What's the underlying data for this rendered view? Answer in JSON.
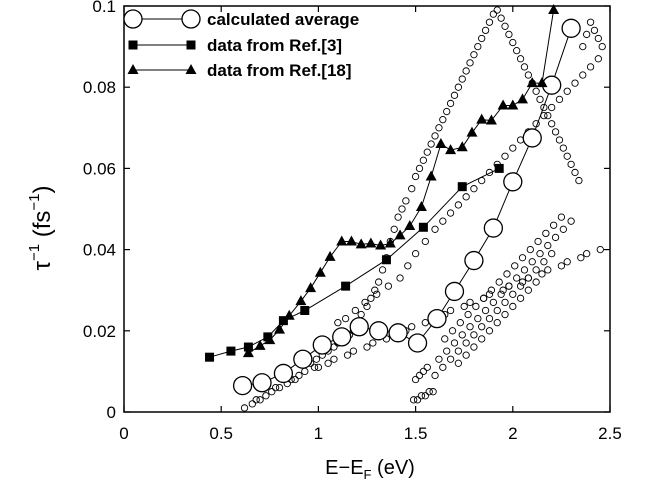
{
  "chart_data": {
    "type": "scatter",
    "xlabel": {
      "main": "E−E",
      "sub": "F",
      "unit": " (eV)"
    },
    "ylabel": {
      "sym": "τ",
      "sup": "−1",
      "paren_open": " (fs",
      "paren_sup": "−1",
      "paren_close": ")"
    },
    "xlim": [
      0,
      2.5
    ],
    "ylim": [
      0,
      0.1
    ],
    "x_ticks": [
      "0",
      "0.5",
      "1",
      "1.5",
      "2",
      "2.5"
    ],
    "y_ticks": [
      "0",
      "0.02",
      "0.04",
      "0.06",
      "0.08",
      "0.1"
    ],
    "legend_position": "top-left",
    "series": [
      {
        "name": "calculated average",
        "marker": "open-circle-large",
        "line": true,
        "x": [
          0.61,
          0.71,
          0.82,
          0.92,
          1.02,
          1.12,
          1.21,
          1.31,
          1.41,
          1.51,
          1.61,
          1.7,
          1.8,
          1.9,
          2.0,
          2.1,
          2.2,
          2.3
        ],
        "y": [
          0.0065,
          0.0072,
          0.0095,
          0.013,
          0.0165,
          0.0185,
          0.021,
          0.02,
          0.0195,
          0.017,
          0.023,
          0.0297,
          0.0373,
          0.0453,
          0.0567,
          0.0675,
          0.0805,
          0.0945
        ]
      },
      {
        "name": "data from Ref.[3]",
        "marker": "square",
        "line": true,
        "x": [
          0.44,
          0.55,
          0.64,
          0.74,
          0.82,
          0.93,
          1.14,
          1.35,
          1.54,
          1.74,
          1.93
        ],
        "y": [
          0.0135,
          0.015,
          0.016,
          0.0185,
          0.0225,
          0.025,
          0.031,
          0.0375,
          0.0455,
          0.0555,
          0.06
        ]
      },
      {
        "name": "data from Ref.[18]",
        "marker": "triangle",
        "line": true,
        "x": [
          0.64,
          0.7,
          0.75,
          0.8,
          0.85,
          0.91,
          0.96,
          1.01,
          1.06,
          1.12,
          1.17,
          1.22,
          1.27,
          1.32,
          1.37,
          1.42,
          1.47,
          1.53,
          1.58,
          1.63,
          1.68,
          1.74,
          1.79,
          1.84,
          1.89,
          1.95,
          2.0,
          2.05,
          2.1,
          2.15,
          2.21
        ],
        "y": [
          0.0145,
          0.0163,
          0.0177,
          0.0203,
          0.0237,
          0.0273,
          0.0305,
          0.0343,
          0.0382,
          0.042,
          0.042,
          0.0413,
          0.0415,
          0.041,
          0.0415,
          0.0435,
          0.0458,
          0.0505,
          0.058,
          0.066,
          0.0645,
          0.0652,
          0.0688,
          0.072,
          0.0718,
          0.0755,
          0.0755,
          0.077,
          0.081,
          0.081,
          0.099
        ]
      },
      {
        "name": "",
        "marker": "open-circle-small",
        "line": false,
        "x": [
          0.62,
          0.66,
          0.7,
          0.73,
          0.76,
          0.8,
          0.84,
          0.86,
          0.9,
          0.93,
          0.96,
          0.99,
          1.02,
          1.05,
          1.08,
          1.1,
          1.13,
          1.16,
          1.18,
          1.2,
          1.22,
          1.25,
          1.27,
          1.29,
          1.31,
          1.33,
          1.35,
          1.37,
          1.39,
          1.41,
          1.43,
          1.45,
          1.48,
          1.5,
          1.52,
          1.54,
          1.56,
          1.58,
          1.6,
          1.62,
          1.64,
          1.66,
          1.68,
          1.7,
          1.72,
          1.74,
          1.76,
          1.78,
          1.8,
          1.82,
          1.84,
          1.86,
          1.88,
          1.9,
          1.92,
          1.94,
          1.96,
          1.98,
          2.0,
          2.02,
          2.04,
          2.06,
          2.08,
          2.1,
          2.12,
          2.14,
          2.16,
          2.18,
          2.2,
          2.22,
          2.24,
          2.26,
          2.28,
          2.3,
          2.32,
          2.34,
          2.36,
          2.38,
          2.4,
          2.42,
          2.44,
          2.46,
          0.68,
          0.78,
          0.88,
          0.98,
          1.08,
          1.18,
          1.28,
          1.38,
          1.48,
          1.58,
          1.68,
          1.78,
          1.88,
          1.98,
          2.08,
          2.18,
          2.28,
          2.38,
          1.49,
          1.51,
          1.53,
          1.55,
          1.57,
          1.59,
          1.5,
          1.52,
          1.54,
          1.56,
          1.62,
          1.66,
          1.7,
          1.74,
          1.78,
          1.82,
          1.86,
          1.9,
          1.94,
          1.98,
          2.02,
          2.06,
          2.1,
          2.14,
          2.18,
          2.22,
          2.26,
          2.3,
          1.65,
          1.69,
          1.73,
          1.77,
          1.81,
          1.85,
          1.89,
          1.93,
          1.97,
          2.01,
          2.05,
          2.09,
          2.13,
          2.17,
          2.21,
          2.25,
          1.72,
          1.76,
          1.8,
          1.84,
          1.88,
          1.92,
          1.96,
          2.0,
          2.04,
          2.08,
          2.12,
          1.1,
          1.14,
          1.19,
          1.24,
          1.3,
          1.36,
          1.42,
          1.46,
          1.5,
          1.55,
          1.6,
          1.64,
          1.68,
          1.72,
          1.76,
          1.8,
          1.84,
          1.88,
          1.92,
          1.96,
          2.0,
          2.04,
          2.08,
          2.12,
          2.16,
          2.2,
          2.24,
          2.28,
          2.32,
          2.36,
          2.4,
          2.44,
          1.0,
          1.05,
          1.15,
          1.25,
          1.35,
          1.45,
          1.55,
          1.65,
          1.75,
          1.85,
          1.95,
          2.05,
          2.15,
          2.25,
          2.35,
          2.45,
          1.6,
          1.64,
          1.68,
          1.72,
          1.76,
          1.8,
          1.84,
          1.88,
          1.92,
          1.96,
          2.0,
          2.04,
          2.08,
          2.12,
          2.16,
          2.2
        ],
        "y": [
          0.001,
          0.002,
          0.003,
          0.004,
          0.005,
          0.006,
          0.007,
          0.008,
          0.009,
          0.01,
          0.012,
          0.013,
          0.014,
          0.015,
          0.016,
          0.017,
          0.018,
          0.019,
          0.02,
          0.022,
          0.024,
          0.026,
          0.028,
          0.03,
          0.032,
          0.035,
          0.038,
          0.042,
          0.045,
          0.048,
          0.05,
          0.052,
          0.055,
          0.058,
          0.06,
          0.062,
          0.064,
          0.066,
          0.068,
          0.07,
          0.072,
          0.074,
          0.076,
          0.078,
          0.08,
          0.082,
          0.084,
          0.086,
          0.088,
          0.09,
          0.092,
          0.094,
          0.096,
          0.098,
          0.099,
          0.097,
          0.095,
          0.093,
          0.091,
          0.089,
          0.087,
          0.085,
          0.083,
          0.081,
          0.079,
          0.077,
          0.075,
          0.073,
          0.071,
          0.069,
          0.067,
          0.065,
          0.063,
          0.061,
          0.059,
          0.057,
          0.09,
          0.093,
          0.096,
          0.094,
          0.092,
          0.09,
          0.003,
          0.006,
          0.008,
          0.011,
          0.013,
          0.015,
          0.017,
          0.019,
          0.021,
          0.023,
          0.025,
          0.027,
          0.029,
          0.031,
          0.033,
          0.035,
          0.037,
          0.039,
          0.003,
          0.003,
          0.004,
          0.004,
          0.005,
          0.005,
          0.008,
          0.009,
          0.01,
          0.011,
          0.013,
          0.015,
          0.017,
          0.019,
          0.021,
          0.023,
          0.025,
          0.027,
          0.029,
          0.031,
          0.033,
          0.035,
          0.037,
          0.039,
          0.041,
          0.043,
          0.045,
          0.047,
          0.018,
          0.02,
          0.022,
          0.024,
          0.026,
          0.028,
          0.03,
          0.032,
          0.034,
          0.036,
          0.038,
          0.04,
          0.042,
          0.044,
          0.046,
          0.048,
          0.012,
          0.014,
          0.016,
          0.018,
          0.02,
          0.022,
          0.024,
          0.026,
          0.028,
          0.03,
          0.032,
          0.022,
          0.023,
          0.025,
          0.027,
          0.029,
          0.031,
          0.033,
          0.036,
          0.039,
          0.042,
          0.045,
          0.047,
          0.049,
          0.051,
          0.053,
          0.055,
          0.057,
          0.059,
          0.061,
          0.063,
          0.065,
          0.067,
          0.069,
          0.071,
          0.073,
          0.075,
          0.077,
          0.079,
          0.081,
          0.083,
          0.085,
          0.087,
          0.011,
          0.012,
          0.014,
          0.016,
          0.018,
          0.02,
          0.022,
          0.024,
          0.026,
          0.028,
          0.03,
          0.032,
          0.034,
          0.036,
          0.038,
          0.04,
          0.009,
          0.011,
          0.013,
          0.015,
          0.017,
          0.019,
          0.021,
          0.023,
          0.025,
          0.027,
          0.029,
          0.031,
          0.033,
          0.035,
          0.037,
          0.039
        ]
      }
    ]
  }
}
